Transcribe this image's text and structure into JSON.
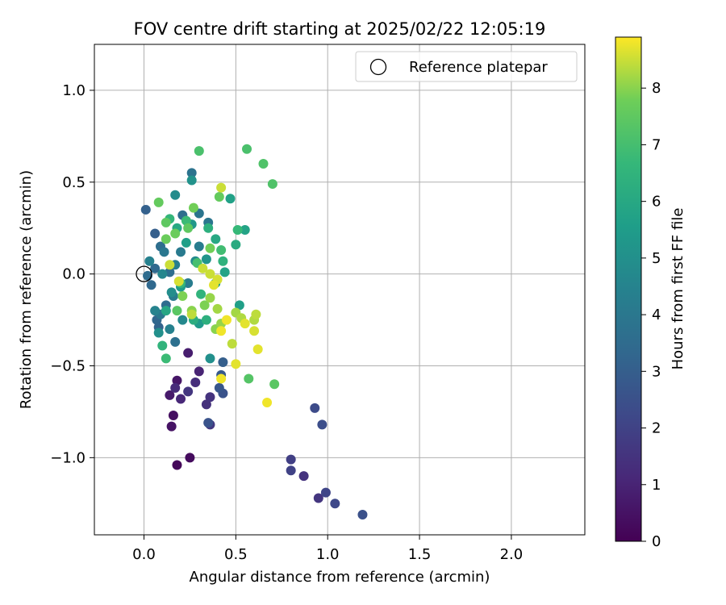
{
  "chart_data": {
    "type": "scatter",
    "title": "FOV centre drift starting at 2025/02/22 12:05:19",
    "xlabel": "Angular distance from reference (arcmin)",
    "ylabel": "Rotation from reference (arcmin)",
    "xlim": [
      -0.27,
      2.4
    ],
    "ylim": [
      -1.42,
      1.25
    ],
    "xticks": [
      0.0,
      0.5,
      1.0,
      1.5,
      2.0
    ],
    "xtick_labels": [
      "0.0",
      "0.5",
      "1.0",
      "1.5",
      "2.0"
    ],
    "yticks": [
      -1.0,
      -0.5,
      0.0,
      0.5,
      1.0
    ],
    "ytick_labels": [
      "−1.0",
      "−0.5",
      "0.0",
      "0.5",
      "1.0"
    ],
    "grid": true,
    "legend": {
      "placement": "top-right",
      "entries": [
        "Reference platepar"
      ]
    },
    "reference_point": {
      "x": 0.0,
      "y": 0.0
    },
    "colorbar": {
      "label": "Hours from first FF file",
      "colormap": "viridis",
      "range": [
        0,
        8.9
      ],
      "ticks": [
        0,
        1,
        2,
        3,
        4,
        5,
        6,
        7,
        8
      ],
      "tick_labels": [
        "0",
        "1",
        "2",
        "3",
        "4",
        "5",
        "6",
        "7",
        "8"
      ]
    },
    "points": [
      {
        "x": 0.18,
        "y": -1.04,
        "h": 0.2
      },
      {
        "x": 0.25,
        "y": -1.0,
        "h": 0.3
      },
      {
        "x": 0.16,
        "y": -0.77,
        "h": 0.4
      },
      {
        "x": 0.15,
        "y": -0.83,
        "h": 0.5
      },
      {
        "x": 0.18,
        "y": -0.58,
        "h": 0.6
      },
      {
        "x": 0.14,
        "y": -0.66,
        "h": 0.7
      },
      {
        "x": 0.24,
        "y": -0.43,
        "h": 0.8
      },
      {
        "x": 0.3,
        "y": -0.53,
        "h": 1.0
      },
      {
        "x": 0.2,
        "y": -0.68,
        "h": 1.1
      },
      {
        "x": 0.17,
        "y": -0.62,
        "h": 1.2
      },
      {
        "x": 0.28,
        "y": -0.59,
        "h": 1.3
      },
      {
        "x": 0.34,
        "y": -0.71,
        "h": 1.4
      },
      {
        "x": 0.36,
        "y": -0.67,
        "h": 1.5
      },
      {
        "x": 0.24,
        "y": -0.64,
        "h": 1.6
      },
      {
        "x": 0.36,
        "y": -0.82,
        "h": 1.7
      },
      {
        "x": 0.87,
        "y": -1.1,
        "h": 1.5
      },
      {
        "x": 0.95,
        "y": -1.22,
        "h": 1.6
      },
      {
        "x": 0.8,
        "y": -1.01,
        "h": 1.9
      },
      {
        "x": 0.8,
        "y": -1.07,
        "h": 2.0
      },
      {
        "x": 0.99,
        "y": -1.19,
        "h": 2.1
      },
      {
        "x": 1.04,
        "y": -1.25,
        "h": 2.2
      },
      {
        "x": 0.93,
        "y": -0.73,
        "h": 2.3
      },
      {
        "x": 0.97,
        "y": -0.82,
        "h": 2.4
      },
      {
        "x": 1.19,
        "y": -1.31,
        "h": 2.5
      },
      {
        "x": 0.35,
        "y": -0.81,
        "h": 2.6
      },
      {
        "x": 0.43,
        "y": -0.65,
        "h": 2.6
      },
      {
        "x": 0.41,
        "y": -0.62,
        "h": 2.7
      },
      {
        "x": 0.42,
        "y": -0.55,
        "h": 2.8
      },
      {
        "x": 0.43,
        "y": -0.48,
        "h": 3.0
      },
      {
        "x": 0.06,
        "y": 0.22,
        "h": 3.0
      },
      {
        "x": 0.01,
        "y": 0.35,
        "h": 3.1
      },
      {
        "x": 0.08,
        "y": -0.29,
        "h": 3.2
      },
      {
        "x": 0.07,
        "y": -0.25,
        "h": 3.3
      },
      {
        "x": 0.04,
        "y": -0.06,
        "h": 3.4
      },
      {
        "x": 0.06,
        "y": 0.03,
        "h": 3.4
      },
      {
        "x": 0.02,
        "y": -0.01,
        "h": 3.5
      },
      {
        "x": 0.12,
        "y": -0.17,
        "h": 3.5
      },
      {
        "x": 0.09,
        "y": 0.15,
        "h": 3.6
      },
      {
        "x": 0.14,
        "y": 0.01,
        "h": 3.6
      },
      {
        "x": 0.17,
        "y": -0.37,
        "h": 3.7
      },
      {
        "x": 0.21,
        "y": 0.32,
        "h": 3.6
      },
      {
        "x": 0.26,
        "y": 0.55,
        "h": 3.8
      },
      {
        "x": 0.3,
        "y": 0.33,
        "h": 3.9
      },
      {
        "x": 0.35,
        "y": 0.28,
        "h": 3.9
      },
      {
        "x": 0.11,
        "y": 0.12,
        "h": 4.0
      },
      {
        "x": 0.09,
        "y": -0.22,
        "h": 4.0
      },
      {
        "x": 0.16,
        "y": -0.12,
        "h": 4.1
      },
      {
        "x": 0.2,
        "y": 0.12,
        "h": 4.1
      },
      {
        "x": 0.24,
        "y": -0.05,
        "h": 4.2
      },
      {
        "x": 0.3,
        "y": 0.15,
        "h": 4.2
      },
      {
        "x": 0.17,
        "y": 0.05,
        "h": 4.3
      },
      {
        "x": 0.14,
        "y": -0.3,
        "h": 4.4
      },
      {
        "x": 0.03,
        "y": 0.07,
        "h": 4.4
      },
      {
        "x": 0.06,
        "y": -0.2,
        "h": 4.5
      },
      {
        "x": 0.1,
        "y": 0.0,
        "h": 4.6
      },
      {
        "x": 0.21,
        "y": -0.25,
        "h": 4.7
      },
      {
        "x": 0.28,
        "y": 0.07,
        "h": 4.8
      },
      {
        "x": 0.17,
        "y": 0.43,
        "h": 4.8
      },
      {
        "x": 0.15,
        "y": -0.1,
        "h": 4.9
      },
      {
        "x": 0.08,
        "y": -0.32,
        "h": 5.0
      },
      {
        "x": 0.36,
        "y": -0.46,
        "h": 5.0
      },
      {
        "x": 0.26,
        "y": 0.51,
        "h": 5.1
      },
      {
        "x": 0.34,
        "y": 0.08,
        "h": 5.2
      },
      {
        "x": 0.26,
        "y": 0.27,
        "h": 5.3
      },
      {
        "x": 0.3,
        "y": -0.27,
        "h": 5.4
      },
      {
        "x": 0.39,
        "y": -0.05,
        "h": 5.4
      },
      {
        "x": 0.2,
        "y": -0.07,
        "h": 5.5
      },
      {
        "x": 0.23,
        "y": 0.17,
        "h": 5.6
      },
      {
        "x": 0.52,
        "y": -0.17,
        "h": 5.6
      },
      {
        "x": 0.47,
        "y": 0.41,
        "h": 5.7
      },
      {
        "x": 0.55,
        "y": 0.24,
        "h": 5.8
      },
      {
        "x": 0.44,
        "y": 0.01,
        "h": 5.8
      },
      {
        "x": 0.12,
        "y": -0.2,
        "h": 5.9
      },
      {
        "x": 0.18,
        "y": 0.25,
        "h": 6.0
      },
      {
        "x": 0.39,
        "y": 0.19,
        "h": 6.0
      },
      {
        "x": 0.5,
        "y": 0.16,
        "h": 6.1
      },
      {
        "x": 0.27,
        "y": -0.25,
        "h": 6.2
      },
      {
        "x": 0.35,
        "y": 0.25,
        "h": 6.3
      },
      {
        "x": 0.34,
        "y": -0.25,
        "h": 6.3
      },
      {
        "x": 0.43,
        "y": 0.07,
        "h": 6.4
      },
      {
        "x": 0.31,
        "y": -0.11,
        "h": 6.5
      },
      {
        "x": 0.1,
        "y": -0.39,
        "h": 6.5
      },
      {
        "x": 0.14,
        "y": 0.3,
        "h": 6.6
      },
      {
        "x": 0.2,
        "y": -0.05,
        "h": 6.6
      },
      {
        "x": 0.51,
        "y": 0.24,
        "h": 6.7
      },
      {
        "x": 0.23,
        "y": 0.29,
        "h": 6.8
      },
      {
        "x": 0.12,
        "y": -0.46,
        "h": 6.8
      },
      {
        "x": 0.42,
        "y": 0.13,
        "h": 6.9
      },
      {
        "x": 0.29,
        "y": 0.06,
        "h": 7.0
      },
      {
        "x": 0.3,
        "y": 0.67,
        "h": 7.1
      },
      {
        "x": 0.56,
        "y": 0.68,
        "h": 7.1
      },
      {
        "x": 0.65,
        "y": 0.6,
        "h": 7.2
      },
      {
        "x": 0.7,
        "y": 0.49,
        "h": 7.2
      },
      {
        "x": 0.57,
        "y": -0.57,
        "h": 7.3
      },
      {
        "x": 0.71,
        "y": -0.6,
        "h": 7.4
      },
      {
        "x": 0.18,
        "y": -0.2,
        "h": 7.4
      },
      {
        "x": 0.24,
        "y": 0.25,
        "h": 7.5
      },
      {
        "x": 0.12,
        "y": 0.28,
        "h": 7.5
      },
      {
        "x": 0.41,
        "y": 0.42,
        "h": 7.6
      },
      {
        "x": 0.08,
        "y": 0.39,
        "h": 7.6
      },
      {
        "x": 0.12,
        "y": 0.19,
        "h": 7.7
      },
      {
        "x": 0.17,
        "y": 0.22,
        "h": 7.7
      },
      {
        "x": 0.27,
        "y": 0.36,
        "h": 7.8
      },
      {
        "x": 0.36,
        "y": 0.14,
        "h": 7.8
      },
      {
        "x": 0.21,
        "y": -0.12,
        "h": 7.9
      },
      {
        "x": 0.33,
        "y": -0.17,
        "h": 7.9
      },
      {
        "x": 0.26,
        "y": -0.2,
        "h": 8.0
      },
      {
        "x": 0.39,
        "y": -0.3,
        "h": 8.0
      },
      {
        "x": 0.42,
        "y": -0.27,
        "h": 8.1
      },
      {
        "x": 0.36,
        "y": -0.13,
        "h": 8.1
      },
      {
        "x": 0.4,
        "y": -0.19,
        "h": 8.2
      },
      {
        "x": 0.5,
        "y": -0.21,
        "h": 8.2
      },
      {
        "x": 0.53,
        "y": -0.24,
        "h": 8.3
      },
      {
        "x": 0.6,
        "y": -0.25,
        "h": 8.3
      },
      {
        "x": 0.61,
        "y": -0.22,
        "h": 8.4
      },
      {
        "x": 0.48,
        "y": -0.38,
        "h": 8.4
      },
      {
        "x": 0.42,
        "y": 0.47,
        "h": 8.5
      },
      {
        "x": 0.32,
        "y": 0.03,
        "h": 8.5
      },
      {
        "x": 0.36,
        "y": 0.0,
        "h": 8.5
      },
      {
        "x": 0.4,
        "y": -0.03,
        "h": 8.6
      },
      {
        "x": 0.6,
        "y": -0.31,
        "h": 8.6
      },
      {
        "x": 0.55,
        "y": -0.27,
        "h": 8.7
      },
      {
        "x": 0.62,
        "y": -0.41,
        "h": 8.7
      },
      {
        "x": 0.5,
        "y": -0.49,
        "h": 8.7
      },
      {
        "x": 0.42,
        "y": -0.57,
        "h": 8.8
      },
      {
        "x": 0.67,
        "y": -0.7,
        "h": 8.8
      },
      {
        "x": 0.42,
        "y": -0.31,
        "h": 8.8
      },
      {
        "x": 0.45,
        "y": -0.25,
        "h": 8.8
      },
      {
        "x": 0.38,
        "y": -0.06,
        "h": 8.7
      },
      {
        "x": 0.19,
        "y": -0.04,
        "h": 8.6
      },
      {
        "x": 0.14,
        "y": 0.05,
        "h": 8.5
      },
      {
        "x": 0.26,
        "y": -0.22,
        "h": 8.4
      }
    ]
  }
}
